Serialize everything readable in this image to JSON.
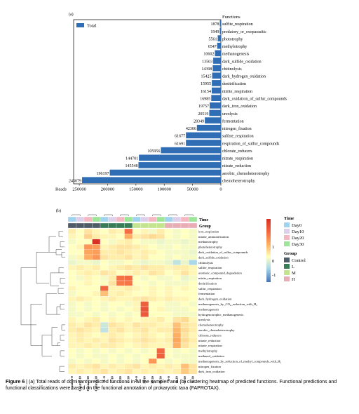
{
  "panel_a_label": "(a)",
  "panel_b_label": "(b)",
  "caption": {
    "figure_label": "Figure 6",
    "text": " | (a) Total reads of dominant predicted functions in all the samples and (b) clustering heatmap of predicted functions. Functional predictions and functional classifications were based on the functional annotation of prokaryotic taxa (FAPROTAX)."
  },
  "chart_data": [
    {
      "type": "bar",
      "orientation": "horizontal",
      "legend_label": "Total",
      "categories_header": "Functions",
      "xlabel": "Reads",
      "xlim": [
        260000,
        0
      ],
      "xticks": [
        250000,
        200000,
        150000,
        100000,
        50000,
        0
      ],
      "bar_color": "#2f6eb5",
      "categories": [
        "sulfite_respiration",
        "predatory_or_exoparasitic",
        "phototrophy",
        "methylotrophy",
        "methanogenesis",
        "dark_sulfide_oxidation",
        "chitinolysis",
        "dark_hydrogen_oxidation",
        "denitrification",
        "nitrite_respiration",
        "dark_oxidation_of_sulfur_compounds",
        "dark_iron_oxidation",
        "ureolysis",
        "fermentation",
        "nitrogen_fixation",
        "sulfate_respiration",
        "respiration_of_sulfur_compounds",
        "chlorate_reducers",
        "nitrate_respiration",
        "nitrate_reduction",
        "aerobic_chemoheterotrophy",
        "chemoheterotrophy"
      ],
      "values": [
        1878,
        1949,
        5561,
        6547,
        10602,
        13503,
        14398,
        15425,
        15955,
        16154,
        16985,
        19757,
        20519,
        28349,
        42306,
        61677,
        61691,
        105956,
        144701,
        145548,
        196197,
        245079
      ]
    },
    {
      "type": "heatmap",
      "columns": [
        "Control-0",
        "Control-10",
        "Control-20",
        "Control-30",
        "L-0",
        "L-10",
        "L-20",
        "L-30",
        "M-0",
        "M-10",
        "M-20",
        "M-30",
        "H-0",
        "H-10",
        "H-20",
        "H-30"
      ],
      "time_annotation": [
        "Day0",
        "Day10",
        "Day20",
        "Day30",
        "Day0",
        "Day10",
        "Day20",
        "Day30",
        "Day0",
        "Day10",
        "Day20",
        "Day30",
        "Day0",
        "Day10",
        "Day20",
        "Day30"
      ],
      "group_annotation": [
        "Control",
        "Control",
        "Control",
        "Control",
        "L",
        "L",
        "L",
        "L",
        "M",
        "M",
        "M",
        "M",
        "H",
        "H",
        "H",
        "H"
      ],
      "annotation_titles": {
        "time": "Time",
        "group": "Group"
      },
      "rows": [
        "iron_respiration",
        "nitrate_ammonification",
        "methanotrophy",
        "photoheterotrophy",
        "dark_oxidation_of_sulfur_compounds",
        "dark_sulfide_oxidation",
        "chitinolysis",
        "sulfite_respiration",
        "aromatic_compound_degradation",
        "nitrite_respiration",
        "denitrification",
        "sulfur_respiration",
        "fermentation",
        "dark_hydrogen_oxidation",
        "methanogenesis_by_CO₂_reduction_with_H₂",
        "methanogenesis",
        "hydrogenotrophic_methanogenesis",
        "ureolysis",
        "chemoheterotrophy",
        "aerobic_chemoheterotrophy",
        "chlorate_reducers",
        "nitrate_reduction",
        "nitrate_respiration",
        "methylotrophy",
        "methanol_oxidation",
        "methanogenesis_by_reduction_of_methyl_compounds_with_H₂",
        "nitrogen_fixation",
        "dark_iron_oxidation"
      ],
      "values": [
        [
          0.5,
          0.3,
          0.6,
          0.4,
          0.3,
          0.5,
          0.4,
          2.0,
          0.3,
          0.4,
          0.2,
          0.5,
          0.3,
          0.2,
          0.3,
          0.2
        ],
        [
          0.4,
          0.3,
          0.8,
          0.5,
          0.4,
          0.4,
          0.3,
          1.2,
          0.5,
          0.6,
          0.7,
          0.6,
          0.3,
          0.2,
          0.3,
          0.2
        ],
        [
          0.2,
          0.3,
          0.3,
          3.0,
          0.3,
          0.2,
          0.4,
          0.5,
          0.3,
          0.2,
          0.2,
          0.1,
          0.2,
          0.2,
          0.1,
          0.2
        ],
        [
          0.3,
          0.4,
          1.5,
          1.4,
          0.4,
          0.5,
          0.6,
          0.6,
          0.5,
          0.4,
          0.3,
          0.2,
          0.2,
          0.3,
          0.2,
          0.2
        ],
        [
          0.3,
          0.3,
          1.3,
          1.4,
          0.5,
          0.5,
          0.6,
          0.5,
          0.4,
          0.5,
          0.4,
          0.3,
          0.2,
          0.2,
          0.2,
          0.1
        ],
        [
          0.2,
          0.4,
          1.2,
          1.5,
          0.6,
          0.5,
          0.5,
          0.6,
          0.4,
          0.5,
          0.3,
          0.3,
          0.2,
          0.3,
          0.2,
          0.2
        ],
        [
          0.1,
          0.2,
          0.2,
          0.1,
          0.3,
          0.2,
          0.2,
          0.3,
          0.2,
          0.1,
          0.2,
          0.2,
          0.1,
          -0.3,
          0.1,
          -0.5
        ],
        [
          0.4,
          0.5,
          0.4,
          0.5,
          0.3,
          0.4,
          0.5,
          0.6,
          0.5,
          0.6,
          0.5,
          0.5,
          0.4,
          0.5,
          0.5,
          0.4
        ],
        [
          0.3,
          0.4,
          0.5,
          0.4,
          0.6,
          0.5,
          0.3,
          0.4,
          0.5,
          0.4,
          0.6,
          0.5,
          0.3,
          0.4,
          0.6,
          0.4
        ],
        [
          0.3,
          0.2,
          0.4,
          0.3,
          0.2,
          0.5,
          1.9,
          2.0,
          0.3,
          0.2,
          0.3,
          0.2,
          0.2,
          0.3,
          0.1,
          0.2
        ],
        [
          0.3,
          0.3,
          0.4,
          0.3,
          0.3,
          0.6,
          1.8,
          1.9,
          0.3,
          0.3,
          0.2,
          0.3,
          0.2,
          0.2,
          0.2,
          0.3
        ],
        [
          0.4,
          0.3,
          0.3,
          0.3,
          2.1,
          0.4,
          0.4,
          0.5,
          0.4,
          0.3,
          0.4,
          0.3,
          0.4,
          0.3,
          0.4,
          0.3
        ],
        [
          0.2,
          0.3,
          0.3,
          0.4,
          1.0,
          0.4,
          0.5,
          0.4,
          0.3,
          0.3,
          0.4,
          0.3,
          0.4,
          0.3,
          0.3,
          0.3
        ],
        [
          0.4,
          0.5,
          0.4,
          0.3,
          0.4,
          0.5,
          0.4,
          0.4,
          0.5,
          0.6,
          0.5,
          0.4,
          0.5,
          0.4,
          0.4,
          0.3
        ],
        [
          0.2,
          0.3,
          0.2,
          0.3,
          0.2,
          0.3,
          0.3,
          0.2,
          0.4,
          2.2,
          0.3,
          0.3,
          0.2,
          0.2,
          0.3,
          0.2
        ],
        [
          0.2,
          0.3,
          0.2,
          0.3,
          0.2,
          0.3,
          0.2,
          0.3,
          0.4,
          2.4,
          0.3,
          0.4,
          0.2,
          0.2,
          0.2,
          0.3
        ],
        [
          0.2,
          0.2,
          0.3,
          0.2,
          0.3,
          0.2,
          0.3,
          0.2,
          0.3,
          2.3,
          0.3,
          0.3,
          0.3,
          0.2,
          0.2,
          0.2
        ],
        [
          0.4,
          0.3,
          0.4,
          0.5,
          0.3,
          0.4,
          0.3,
          0.4,
          0.3,
          0.4,
          0.4,
          0.5,
          0.3,
          0.6,
          0.7,
          0.4
        ],
        [
          0.5,
          0.4,
          0.6,
          0.5,
          -0.2,
          0.6,
          0.5,
          0.4,
          0.6,
          0.5,
          0.5,
          0.4,
          0.4,
          1.0,
          0.6,
          0.5
        ],
        [
          0.5,
          0.6,
          0.5,
          0.4,
          -0.3,
          0.5,
          0.6,
          0.4,
          0.5,
          0.6,
          0.4,
          0.5,
          0.5,
          1.1,
          0.7,
          0.5
        ],
        [
          0.4,
          0.5,
          0.4,
          0.3,
          0.4,
          0.5,
          0.4,
          0.3,
          0.4,
          0.5,
          0.4,
          0.3,
          0.4,
          1.2,
          0.6,
          0.4
        ],
        [
          0.4,
          0.5,
          0.4,
          0.5,
          0.4,
          0.6,
          0.5,
          0.4,
          0.5,
          0.6,
          0.5,
          0.4,
          0.5,
          1.3,
          0.7,
          0.5
        ],
        [
          0.4,
          0.4,
          0.5,
          0.4,
          0.5,
          0.5,
          0.4,
          0.3,
          0.4,
          0.5,
          0.4,
          0.4,
          0.4,
          1.2,
          0.6,
          0.4
        ],
        [
          0.3,
          0.2,
          0.3,
          0.2,
          0.3,
          0.2,
          0.3,
          0.2,
          0.3,
          0.2,
          0.3,
          2.1,
          0.3,
          0.2,
          0.3,
          0.2
        ],
        [
          0.3,
          0.2,
          0.3,
          0.2,
          0.2,
          0.3,
          0.2,
          0.3,
          0.2,
          0.3,
          0.3,
          2.2,
          0.3,
          0.2,
          0.2,
          0.2
        ],
        [
          0.2,
          0.3,
          0.2,
          0.3,
          0.2,
          0.3,
          0.2,
          0.3,
          0.2,
          0.3,
          1.5,
          0.3,
          0.2,
          0.3,
          0.2,
          0.2
        ],
        [
          0.5,
          0.4,
          0.5,
          0.6,
          0.4,
          0.5,
          0.4,
          0.5,
          0.6,
          0.4,
          0.5,
          0.4,
          0.5,
          0.4,
          1.0,
          0.6
        ],
        [
          0.4,
          0.5,
          0.4,
          0.5,
          0.6,
          0.4,
          0.5,
          0.6,
          0.4,
          0.5,
          0.4,
          0.5,
          0.4,
          0.5,
          0.9,
          0.6
        ]
      ],
      "scale_ticks": [
        1,
        0,
        -1
      ],
      "vmin": -1.5,
      "vmax": 3,
      "time_colors": {
        "Day0": "#9fd3ee",
        "Day10": "#ddd0ea",
        "Day20": "#f4b8c2",
        "Day30": "#9ee59a"
      },
      "group_colors": {
        "Control": "#4f5b67",
        "L": "#397c58",
        "M": "#c5e48f",
        "H": "#e9adb5"
      },
      "time_legend_title": "Time",
      "time_legend": [
        "Day0",
        "Day10",
        "Day20",
        "Day30"
      ],
      "group_legend_title": "Group",
      "group_legend": [
        "Control",
        "L",
        "M",
        "H"
      ]
    }
  ]
}
